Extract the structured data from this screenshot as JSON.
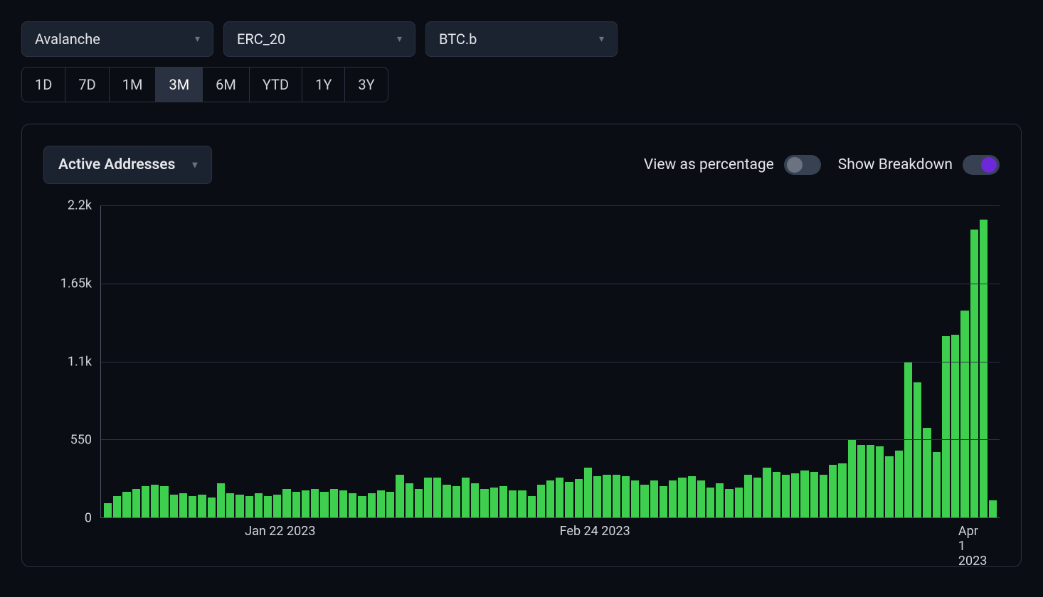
{
  "filters": {
    "chain": "Avalanche",
    "standard": "ERC_20",
    "asset": "BTC.b"
  },
  "timeranges": [
    "1D",
    "7D",
    "1M",
    "3M",
    "6M",
    "YTD",
    "1Y",
    "3Y"
  ],
  "selected_timerange": "3M",
  "metric": "Active Addresses",
  "toggles": {
    "view_as_percentage": {
      "label": "View as percentage",
      "value": false
    },
    "show_breakdown": {
      "label": "Show Breakdown",
      "value": true
    }
  },
  "chart": {
    "type": "bar",
    "bar_color": "#3ecf4f",
    "background_color": "#0a0d14",
    "grid_color": "#2a3241",
    "axis_color": "#4b5563",
    "ymax": 2200,
    "ymin": 0,
    "y_ticks": [
      {
        "value": 0,
        "label": "0"
      },
      {
        "value": 550,
        "label": "550"
      },
      {
        "value": 1100,
        "label": "1.1k"
      },
      {
        "value": 1650,
        "label": "1.65k"
      },
      {
        "value": 2200,
        "label": "2.2k"
      }
    ],
    "x_ticks": [
      {
        "pos_pct": 20,
        "label": "Jan 22 2023"
      },
      {
        "pos_pct": 55,
        "label": "Feb 24 2023"
      },
      {
        "pos_pct": 97,
        "label": "Apr 1 2023"
      }
    ],
    "values": [
      100,
      150,
      180,
      200,
      220,
      230,
      220,
      160,
      170,
      150,
      160,
      140,
      240,
      170,
      160,
      150,
      170,
      150,
      160,
      200,
      180,
      190,
      200,
      180,
      200,
      190,
      170,
      150,
      170,
      190,
      180,
      300,
      240,
      200,
      280,
      280,
      230,
      220,
      280,
      240,
      200,
      210,
      220,
      190,
      190,
      150,
      230,
      260,
      280,
      250,
      270,
      350,
      290,
      300,
      300,
      290,
      260,
      230,
      260,
      220,
      260,
      280,
      290,
      260,
      210,
      240,
      200,
      210,
      300,
      280,
      350,
      320,
      300,
      310,
      330,
      320,
      300,
      370,
      380,
      550,
      510,
      510,
      500,
      430,
      470,
      1100,
      950,
      630,
      460,
      1280,
      1290,
      1460,
      2030,
      2100,
      120
    ]
  }
}
